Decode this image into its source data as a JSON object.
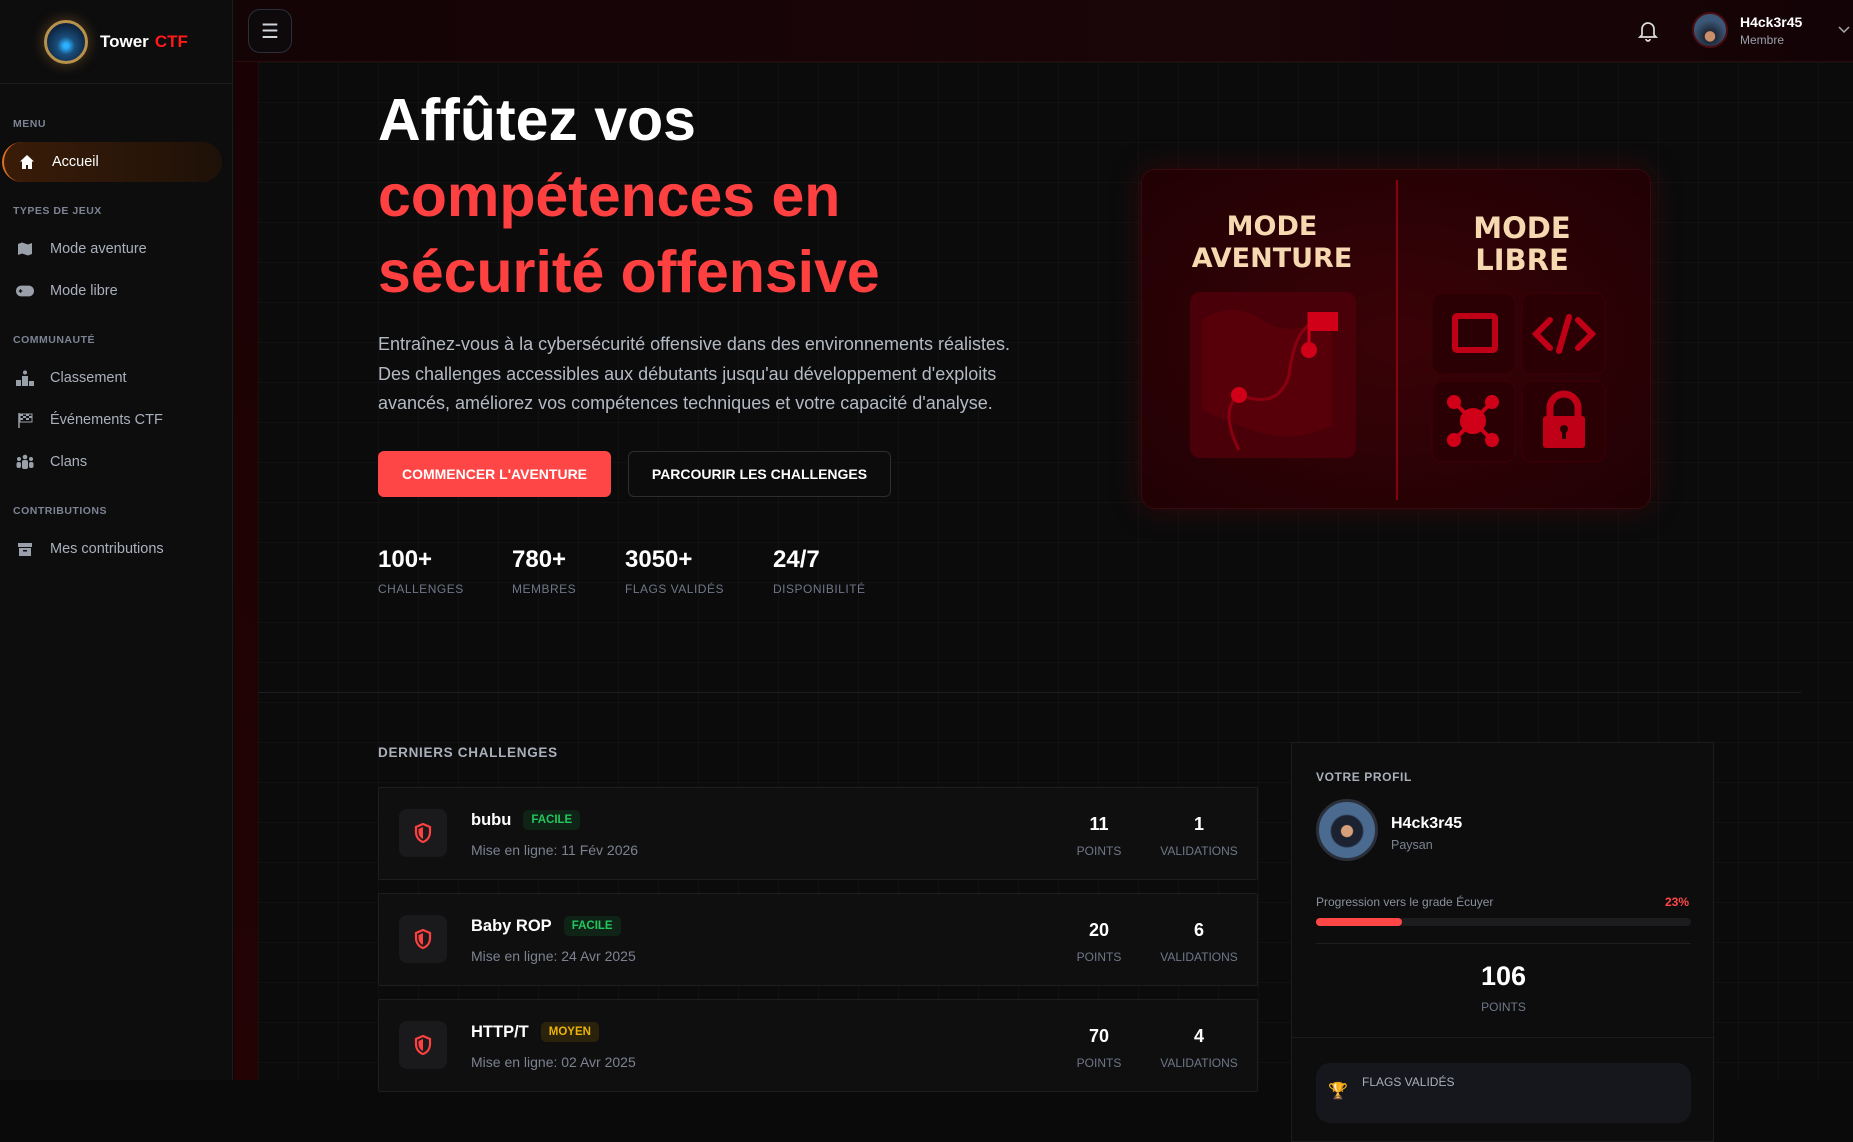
{
  "brand": {
    "name": "Tower",
    "accent": "CTF"
  },
  "sidebar": {
    "sections": [
      {
        "title": "MENU",
        "items": [
          {
            "label": "Accueil",
            "icon": "home-icon",
            "active": true
          }
        ]
      },
      {
        "title": "TYPES DE JEUX",
        "items": [
          {
            "label": "Mode aventure",
            "icon": "map-icon"
          },
          {
            "label": "Mode libre",
            "icon": "gamepad-icon"
          }
        ]
      },
      {
        "title": "COMMUNAUTÉ",
        "items": [
          {
            "label": "Classement",
            "icon": "podium-icon"
          },
          {
            "label": "Événements CTF",
            "icon": "flag-checkered-icon"
          },
          {
            "label": "Clans",
            "icon": "users-icon"
          }
        ]
      },
      {
        "title": "CONTRIBUTIONS",
        "items": [
          {
            "label": "Mes contributions",
            "icon": "archive-icon"
          }
        ]
      }
    ]
  },
  "header": {
    "user": {
      "name": "H4ck3r45",
      "role": "Membre"
    }
  },
  "hero": {
    "title_line1": "Affûtez vos",
    "title_line2": "compétences en",
    "title_line3": "sécurité offensive",
    "description": "Entraînez-vous à la cybersécurité offensive dans des environnements réalistes. Des challenges accessibles aux débutants jusqu'au développement d'exploits avancés, améliorez vos compétences techniques et votre capacité d'analyse.",
    "primary_button": "COMMENCER L'AVENTURE",
    "secondary_button": "PARCOURIR LES CHALLENGES",
    "stats": [
      {
        "value": "100+",
        "label": "CHALLENGES"
      },
      {
        "value": "780+",
        "label": "MEMBRES"
      },
      {
        "value": "3050+",
        "label": "FLAGS VALIDÉS"
      },
      {
        "value": "24/7",
        "label": "DISPONIBILITÉ"
      }
    ],
    "image": {
      "left_title_1": "MODE",
      "left_title_2": "AVENTURE",
      "right_title_1": "MODE",
      "right_title_2": "LIBRE"
    }
  },
  "challenges": {
    "title": "DERNIERS CHALLENGES",
    "points_label": "POINTS",
    "validations_label": "VALIDATIONS",
    "items": [
      {
        "name": "bubu",
        "difficulty": "FACILE",
        "date": "Mise en ligne: 11 Fév 2026",
        "points": "11",
        "validations": "1"
      },
      {
        "name": "Baby ROP",
        "difficulty": "FACILE",
        "date": "Mise en ligne: 24 Avr 2025",
        "points": "20",
        "validations": "6"
      },
      {
        "name": "HTTP/T",
        "difficulty": "MOYEN",
        "date": "Mise en ligne: 02 Avr 2025",
        "points": "70",
        "validations": "4"
      }
    ]
  },
  "profile": {
    "title": "VOTRE PROFIL",
    "name": "H4ck3r45",
    "grade": "Paysan",
    "progress_label": "Progression vers le grade Écuyer",
    "progress_text": "23%",
    "progress": 0.23,
    "points": "106",
    "points_label": "POINTS",
    "flags_label": "FLAGS VALIDÉS"
  },
  "colors": {
    "accent": "#ff4646",
    "easy": "#22c55e",
    "medium": "#eab308",
    "active_nav": "#e07020"
  }
}
